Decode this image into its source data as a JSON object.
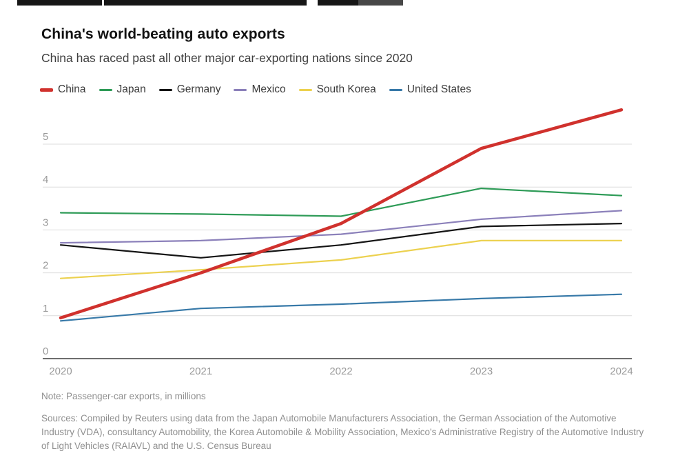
{
  "header": {
    "title": "China's world-beating auto exports",
    "subtitle": "China has raced past all other major car-exporting nations since 2020"
  },
  "chart_data": {
    "type": "line",
    "x": [
      2020,
      2021,
      2022,
      2023,
      2024
    ],
    "series": [
      {
        "name": "China",
        "color": "#d0312d",
        "thick": true,
        "values": [
          0.95,
          2.0,
          3.15,
          4.9,
          5.8
        ]
      },
      {
        "name": "Japan",
        "color": "#2e9b57",
        "thick": false,
        "values": [
          3.4,
          3.37,
          3.32,
          3.97,
          3.8
        ]
      },
      {
        "name": "Germany",
        "color": "#141414",
        "thick": false,
        "values": [
          2.65,
          2.35,
          2.65,
          3.08,
          3.15
        ]
      },
      {
        "name": "Mexico",
        "color": "#8b80ba",
        "thick": false,
        "values": [
          2.7,
          2.75,
          2.9,
          3.25,
          3.45
        ]
      },
      {
        "name": "South Korea",
        "color": "#ecd14f",
        "thick": false,
        "values": [
          1.87,
          2.07,
          2.3,
          2.75,
          2.75
        ]
      },
      {
        "name": "United States",
        "color": "#3779a8",
        "thick": false,
        "values": [
          0.88,
          1.17,
          1.27,
          1.4,
          1.5
        ]
      }
    ],
    "title": "China's world-beating auto exports",
    "subtitle": "China has raced past all other major car-exporting nations since 2020",
    "xlabel": "",
    "ylabel": "",
    "yticks": [
      0,
      1,
      2,
      3,
      4,
      5
    ],
    "ylim": [
      0,
      5.9
    ],
    "grid": true,
    "legend_position": "top"
  },
  "styles": {
    "gridline_color": "#dcdcdc",
    "axis_color": "#6e6e6e",
    "tick_label_color": "#9a9a9a"
  },
  "footer": {
    "note": "Note: Passenger-car exports, in millions",
    "sources": "Sources: Compiled by Reuters using data from the Japan Automobile Manufacturers Association, the German Association of the Automotive Industry (VDA), consultancy Automobility, the Korea Automobile & Mobility Association, Mexico's Administrative Registry of the Automotive Industry of Light Vehicles (RAIAVL) and the U.S. Census Bureau"
  }
}
